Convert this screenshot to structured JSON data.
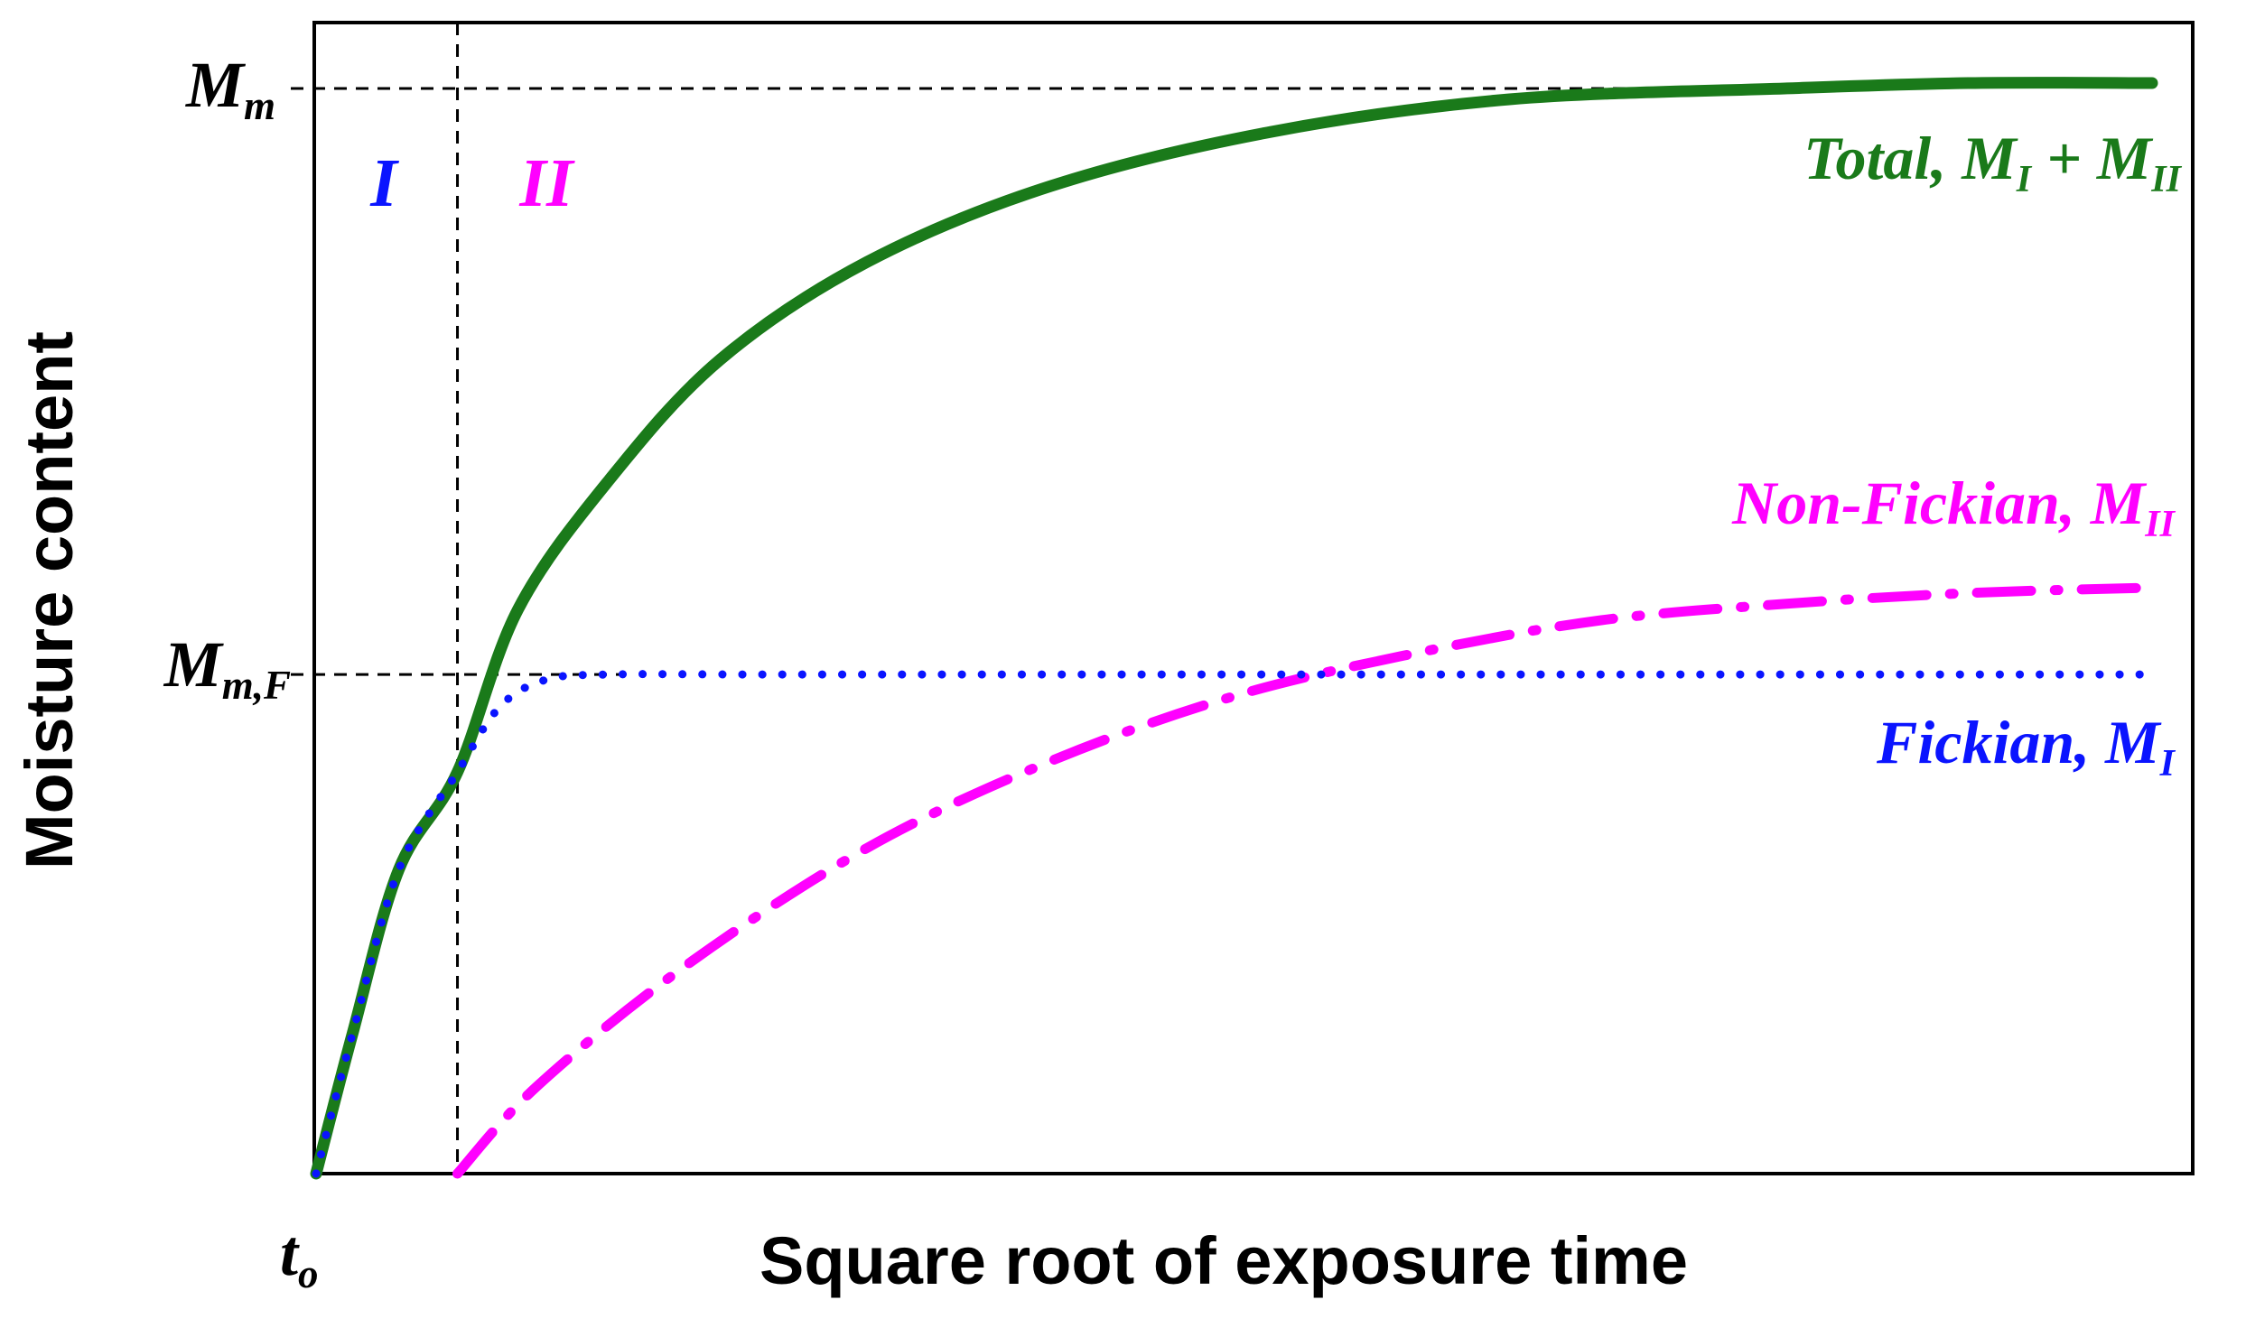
{
  "colors": {
    "total": "#1a7a1a",
    "non_fickian": "#ff00ff",
    "fickian": "#0a14ff",
    "frame": "#000000"
  },
  "chart_data": {
    "type": "line",
    "title": "",
    "xlabel": "Square root of exposure time",
    "ylabel": "Moisture content",
    "x_ticks": [
      {
        "x": 0,
        "label_main": "t",
        "label_sub": "o"
      }
    ],
    "y_ticks": [
      {
        "y": 1.0,
        "label_main": "M",
        "label_sub": "m"
      },
      {
        "y": 0.46,
        "label_main": "M",
        "label_sub": "m,F"
      }
    ],
    "xlim": [
      0,
      1.0
    ],
    "ylim": [
      0,
      1.06
    ],
    "t_transition": 0.077,
    "regions": [
      {
        "label": "I",
        "color": "#0a14ff"
      },
      {
        "label": "II",
        "color": "#ff00ff"
      }
    ],
    "series": [
      {
        "key": "total",
        "style": "solid",
        "label_main": "Total, M",
        "label_sub1": "I",
        "label_mid": " + M",
        "label_sub2": "II",
        "x": [
          0,
          0.02,
          0.045,
          0.077,
          0.11,
          0.16,
          0.22,
          0.3,
          0.4,
          0.52,
          0.65,
          0.8,
          0.9,
          1.0
        ],
        "y": [
          0,
          0.13,
          0.28,
          0.37,
          0.52,
          0.64,
          0.75,
          0.84,
          0.91,
          0.96,
          0.99,
          1.0,
          1.005,
          1.005
        ]
      },
      {
        "key": "non_fickian",
        "style": "dashdot",
        "label_main": "Non-Fickian, M",
        "label_sub1": "II",
        "x": [
          0.077,
          0.12,
          0.2,
          0.3,
          0.4,
          0.5,
          0.6,
          0.7,
          0.8,
          0.9,
          1.0
        ],
        "y": [
          0,
          0.08,
          0.19,
          0.3,
          0.38,
          0.44,
          0.48,
          0.51,
          0.525,
          0.535,
          0.54
        ]
      },
      {
        "key": "fickian",
        "style": "dotted",
        "label_main": "Fickian, M",
        "label_sub1": "I",
        "x": [
          0,
          0.02,
          0.045,
          0.077,
          0.1,
          0.125,
          0.16,
          0.25,
          0.5,
          0.75,
          1.0
        ],
        "y": [
          0,
          0.13,
          0.28,
          0.37,
          0.43,
          0.455,
          0.46,
          0.46,
          0.46,
          0.46,
          0.46
        ]
      }
    ]
  }
}
